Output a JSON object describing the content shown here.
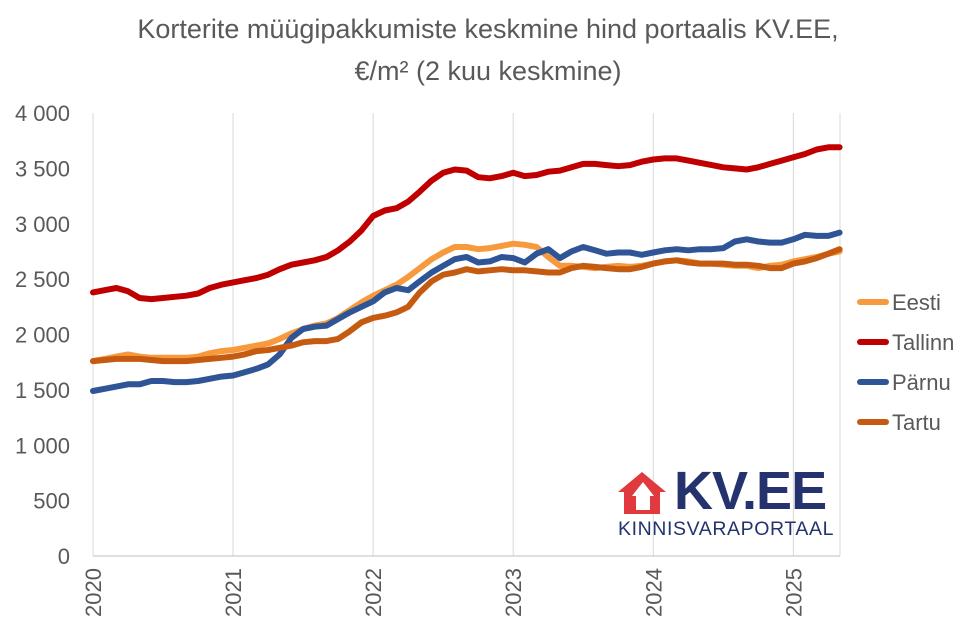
{
  "chart_data": {
    "type": "line",
    "title_line1": "Korterite müügipakkumiste keskmine hind portaalis KV.EE,",
    "title_line2": "€/m² (2 kuu keskmine)",
    "ylim": [
      0,
      4000
    ],
    "yticks": [
      {
        "value": 0,
        "label": "0"
      },
      {
        "value": 500,
        "label": "500"
      },
      {
        "value": 1000,
        "label": "1 000"
      },
      {
        "value": 1500,
        "label": "1 500"
      },
      {
        "value": 2000,
        "label": "2 000"
      },
      {
        "value": 2500,
        "label": "2 500"
      },
      {
        "value": 3000,
        "label": "3 000"
      },
      {
        "value": 3500,
        "label": "3 500"
      },
      {
        "value": 4000,
        "label": "4 000"
      }
    ],
    "xlim": [
      2020.0,
      2025.33
    ],
    "xticks": [
      {
        "value": 2020,
        "label": "2020"
      },
      {
        "value": 2021,
        "label": "2021"
      },
      {
        "value": 2022,
        "label": "2022"
      },
      {
        "value": 2023,
        "label": "2023"
      },
      {
        "value": 2024,
        "label": "2024"
      },
      {
        "value": 2025,
        "label": "2025"
      }
    ],
    "grid": "vertical",
    "legend": "right",
    "x": [
      2020.0,
      2020.083,
      2020.167,
      2020.25,
      2020.333,
      2020.417,
      2020.5,
      2020.583,
      2020.667,
      2020.75,
      2020.833,
      2020.917,
      2021.0,
      2021.083,
      2021.167,
      2021.25,
      2021.333,
      2021.417,
      2021.5,
      2021.583,
      2021.667,
      2021.75,
      2021.833,
      2021.917,
      2022.0,
      2022.083,
      2022.167,
      2022.25,
      2022.333,
      2022.417,
      2022.5,
      2022.583,
      2022.667,
      2022.75,
      2022.833,
      2022.917,
      2023.0,
      2023.083,
      2023.167,
      2023.25,
      2023.333,
      2023.417,
      2023.5,
      2023.583,
      2023.667,
      2023.75,
      2023.833,
      2023.917,
      2024.0,
      2024.083,
      2024.167,
      2024.25,
      2024.333,
      2024.417,
      2024.5,
      2024.583,
      2024.667,
      2024.75,
      2024.833,
      2024.917,
      2025.0,
      2025.083,
      2025.167,
      2025.25,
      2025.33
    ],
    "series": [
      {
        "name": "Eesti",
        "color": "#f79a3e",
        "values": [
          1760,
          1780,
          1800,
          1820,
          1800,
          1790,
          1790,
          1790,
          1790,
          1800,
          1830,
          1850,
          1860,
          1880,
          1900,
          1920,
          1960,
          2010,
          2050,
          2080,
          2100,
          2150,
          2220,
          2290,
          2350,
          2400,
          2450,
          2520,
          2600,
          2680,
          2740,
          2790,
          2790,
          2770,
          2780,
          2800,
          2820,
          2810,
          2790,
          2700,
          2620,
          2620,
          2610,
          2600,
          2610,
          2620,
          2610,
          2620,
          2640,
          2660,
          2670,
          2660,
          2640,
          2640,
          2630,
          2620,
          2620,
          2600,
          2620,
          2630,
          2660,
          2680,
          2700,
          2730,
          2750
        ]
      },
      {
        "name": "Tallinn",
        "color": "#c00000",
        "values": [
          2380,
          2400,
          2420,
          2390,
          2330,
          2320,
          2330,
          2340,
          2350,
          2370,
          2420,
          2450,
          2470,
          2490,
          2510,
          2540,
          2590,
          2630,
          2650,
          2670,
          2700,
          2760,
          2840,
          2940,
          3070,
          3120,
          3140,
          3200,
          3290,
          3390,
          3460,
          3490,
          3480,
          3420,
          3410,
          3430,
          3460,
          3430,
          3440,
          3470,
          3480,
          3510,
          3540,
          3540,
          3530,
          3520,
          3530,
          3560,
          3580,
          3590,
          3590,
          3570,
          3550,
          3530,
          3510,
          3500,
          3490,
          3510,
          3540,
          3570,
          3600,
          3630,
          3670,
          3690,
          3690
        ]
      },
      {
        "name": "Pärnu",
        "color": "#2f5597",
        "values": [
          1490,
          1510,
          1530,
          1550,
          1550,
          1580,
          1580,
          1570,
          1570,
          1580,
          1600,
          1620,
          1630,
          1660,
          1690,
          1730,
          1820,
          1970,
          2050,
          2070,
          2080,
          2140,
          2200,
          2250,
          2300,
          2380,
          2420,
          2400,
          2480,
          2560,
          2620,
          2680,
          2700,
          2650,
          2660,
          2700,
          2690,
          2650,
          2730,
          2770,
          2690,
          2750,
          2790,
          2760,
          2730,
          2740,
          2740,
          2720,
          2740,
          2760,
          2770,
          2760,
          2770,
          2770,
          2780,
          2840,
          2860,
          2840,
          2830,
          2830,
          2860,
          2900,
          2890,
          2890,
          2920
        ]
      },
      {
        "name": "Tartu",
        "color": "#c55a11",
        "values": [
          1760,
          1770,
          1780,
          1780,
          1780,
          1770,
          1760,
          1760,
          1760,
          1770,
          1780,
          1790,
          1800,
          1820,
          1850,
          1860,
          1880,
          1900,
          1930,
          1940,
          1940,
          1960,
          2030,
          2110,
          2150,
          2170,
          2200,
          2250,
          2380,
          2480,
          2540,
          2560,
          2590,
          2570,
          2580,
          2590,
          2580,
          2580,
          2570,
          2560,
          2560,
          2600,
          2620,
          2610,
          2600,
          2590,
          2590,
          2610,
          2640,
          2660,
          2670,
          2650,
          2640,
          2640,
          2640,
          2630,
          2630,
          2620,
          2600,
          2600,
          2640,
          2660,
          2690,
          2730,
          2770
        ]
      }
    ]
  },
  "logo": {
    "name": "KV.EE",
    "tagline": "KINNISVARAPORTAAL",
    "icon_color": "#e03a3e",
    "text_color": "#24336e"
  }
}
